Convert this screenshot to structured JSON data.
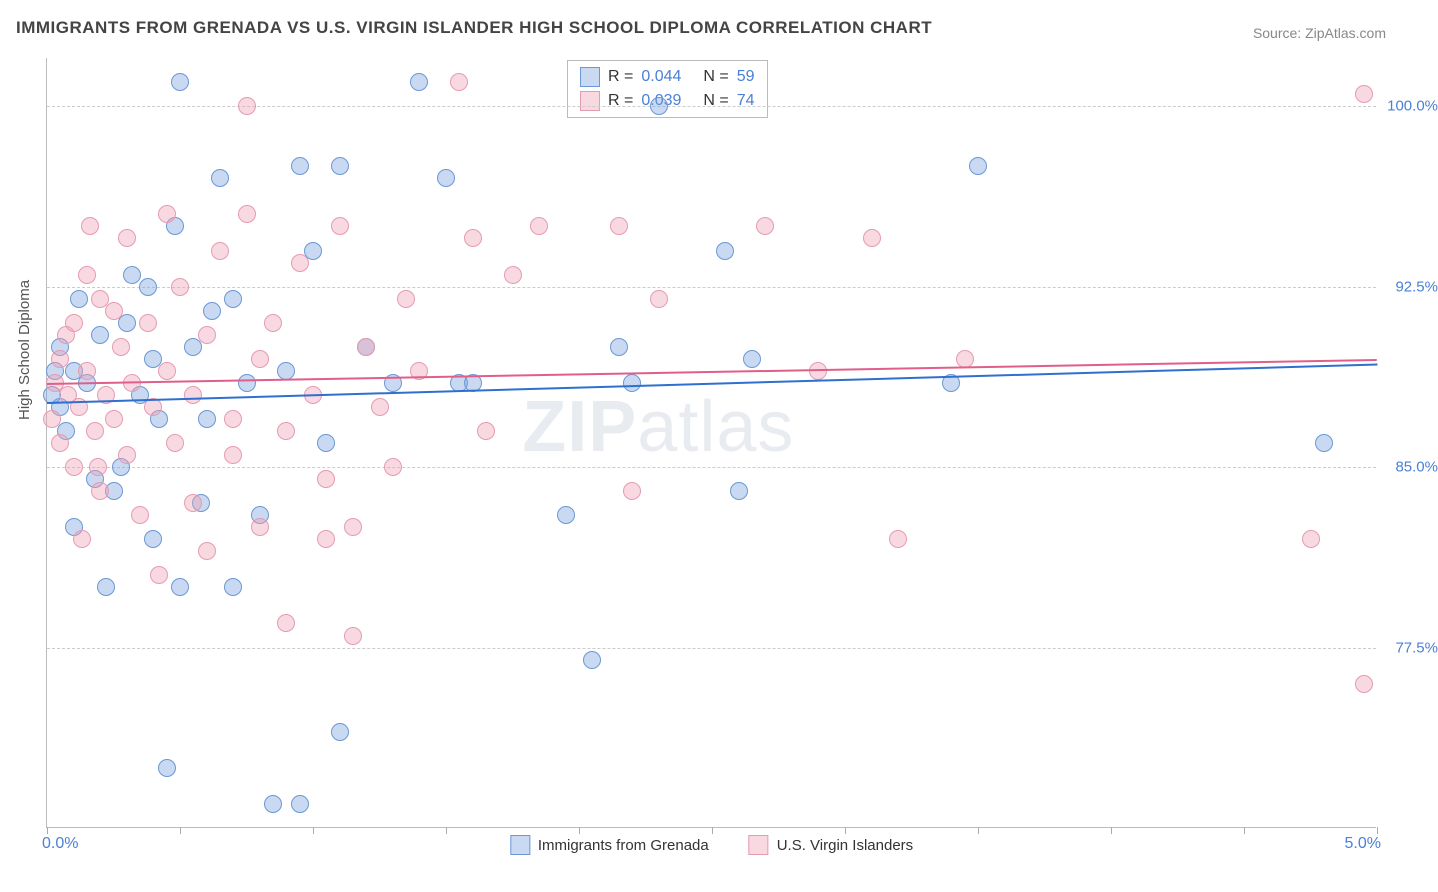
{
  "title": "IMMIGRANTS FROM GRENADA VS U.S. VIRGIN ISLANDER HIGH SCHOOL DIPLOMA CORRELATION CHART",
  "source": "Source: ZipAtlas.com",
  "ylabel": "High School Diploma",
  "watermark_bold": "ZIP",
  "watermark_rest": "atlas",
  "chart": {
    "type": "scatter",
    "xlim": [
      0.0,
      5.0
    ],
    "ylim": [
      70.0,
      102.0
    ],
    "x_tick_labels": {
      "left": "0.0%",
      "right": "5.0%"
    },
    "y_ticks": [
      {
        "value": 100.0,
        "label": "100.0%"
      },
      {
        "value": 92.5,
        "label": "92.5%"
      },
      {
        "value": 85.0,
        "label": "85.0%"
      },
      {
        "value": 77.5,
        "label": "77.5%"
      }
    ],
    "x_minor_ticks": [
      0,
      0.5,
      1.0,
      1.5,
      2.0,
      2.5,
      3.0,
      3.5,
      4.0,
      4.5,
      5.0
    ],
    "background_color": "#ffffff",
    "grid_color": "#cccccc",
    "series": [
      {
        "name": "Immigrants from Grenada",
        "color_fill": "rgba(120,160,220,0.4)",
        "color_stroke": "#6b98d6",
        "marker_size": 18,
        "R": "0.044",
        "N": "59",
        "trend": {
          "y_at_x0": 87.7,
          "y_at_x5": 89.3,
          "color": "#2f6fd0",
          "width": 2
        },
        "points": [
          [
            0.02,
            88.0
          ],
          [
            0.03,
            89.0
          ],
          [
            0.05,
            87.5
          ],
          [
            0.05,
            90.0
          ],
          [
            0.07,
            86.5
          ],
          [
            0.1,
            82.5
          ],
          [
            0.1,
            89.0
          ],
          [
            0.12,
            92.0
          ],
          [
            0.15,
            88.5
          ],
          [
            0.18,
            84.5
          ],
          [
            0.2,
            90.5
          ],
          [
            0.22,
            80.0
          ],
          [
            0.25,
            84.0
          ],
          [
            0.3,
            91.0
          ],
          [
            0.35,
            88.0
          ],
          [
            0.4,
            82.0
          ],
          [
            0.4,
            89.5
          ],
          [
            0.45,
            72.5
          ],
          [
            0.5,
            80.0
          ],
          [
            0.5,
            101.0
          ],
          [
            0.55,
            90.0
          ],
          [
            0.6,
            87.0
          ],
          [
            0.65,
            97.0
          ],
          [
            0.7,
            92.0
          ],
          [
            0.7,
            80.0
          ],
          [
            0.75,
            88.5
          ],
          [
            0.8,
            83.0
          ],
          [
            0.85,
            71.0
          ],
          [
            0.9,
            89.0
          ],
          [
            0.95,
            97.5
          ],
          [
            0.95,
            71.0
          ],
          [
            1.0,
            94.0
          ],
          [
            1.05,
            86.0
          ],
          [
            1.1,
            74.0
          ],
          [
            1.1,
            97.5
          ],
          [
            1.2,
            90.0
          ],
          [
            1.3,
            88.5
          ],
          [
            1.4,
            101.0
          ],
          [
            1.5,
            97.0
          ],
          [
            1.55,
            88.5
          ],
          [
            1.6,
            88.5
          ],
          [
            1.95,
            83.0
          ],
          [
            2.05,
            77.0
          ],
          [
            2.15,
            90.0
          ],
          [
            2.2,
            88.5
          ],
          [
            2.3,
            100.0
          ],
          [
            2.55,
            94.0
          ],
          [
            2.6,
            84.0
          ],
          [
            2.65,
            89.5
          ],
          [
            3.5,
            97.5
          ],
          [
            3.4,
            88.5
          ],
          [
            4.8,
            86.0
          ],
          [
            0.28,
            85.0
          ],
          [
            0.32,
            93.0
          ],
          [
            0.38,
            92.5
          ],
          [
            0.42,
            87.0
          ],
          [
            0.48,
            95.0
          ],
          [
            0.58,
            83.5
          ],
          [
            0.62,
            91.5
          ]
        ]
      },
      {
        "name": "U.S. Virgin Islanders",
        "color_fill": "rgba(240,160,180,0.4)",
        "color_stroke": "#e59bb0",
        "marker_size": 18,
        "R": "0.039",
        "N": "74",
        "trend": {
          "y_at_x0": 88.5,
          "y_at_x5": 89.5,
          "color": "#e05f8a",
          "width": 2
        },
        "points": [
          [
            0.02,
            87.0
          ],
          [
            0.03,
            88.5
          ],
          [
            0.05,
            86.0
          ],
          [
            0.05,
            89.5
          ],
          [
            0.07,
            90.5
          ],
          [
            0.08,
            88.0
          ],
          [
            0.1,
            91.0
          ],
          [
            0.1,
            85.0
          ],
          [
            0.12,
            87.5
          ],
          [
            0.15,
            93.0
          ],
          [
            0.15,
            89.0
          ],
          [
            0.18,
            86.5
          ],
          [
            0.2,
            92.0
          ],
          [
            0.2,
            84.0
          ],
          [
            0.22,
            88.0
          ],
          [
            0.25,
            91.5
          ],
          [
            0.25,
            87.0
          ],
          [
            0.28,
            90.0
          ],
          [
            0.3,
            85.5
          ],
          [
            0.3,
            94.5
          ],
          [
            0.32,
            88.5
          ],
          [
            0.35,
            83.0
          ],
          [
            0.38,
            91.0
          ],
          [
            0.4,
            87.5
          ],
          [
            0.42,
            80.5
          ],
          [
            0.45,
            95.5
          ],
          [
            0.45,
            89.0
          ],
          [
            0.48,
            86.0
          ],
          [
            0.5,
            92.5
          ],
          [
            0.55,
            88.0
          ],
          [
            0.55,
            83.5
          ],
          [
            0.6,
            90.5
          ],
          [
            0.6,
            81.5
          ],
          [
            0.65,
            94.0
          ],
          [
            0.7,
            87.0
          ],
          [
            0.7,
            85.5
          ],
          [
            0.75,
            95.5
          ],
          [
            0.75,
            100.0
          ],
          [
            0.8,
            89.5
          ],
          [
            0.8,
            82.5
          ],
          [
            0.85,
            91.0
          ],
          [
            0.9,
            86.5
          ],
          [
            0.9,
            78.5
          ],
          [
            0.95,
            93.5
          ],
          [
            1.0,
            88.0
          ],
          [
            1.05,
            84.5
          ],
          [
            1.05,
            82.0
          ],
          [
            1.1,
            95.0
          ],
          [
            1.15,
            78.0
          ],
          [
            1.15,
            82.5
          ],
          [
            1.2,
            90.0
          ],
          [
            1.25,
            87.5
          ],
          [
            1.3,
            85.0
          ],
          [
            1.35,
            92.0
          ],
          [
            1.4,
            89.0
          ],
          [
            1.55,
            101.0
          ],
          [
            1.6,
            94.5
          ],
          [
            1.65,
            86.5
          ],
          [
            1.75,
            93.0
          ],
          [
            1.85,
            95.0
          ],
          [
            2.15,
            95.0
          ],
          [
            2.2,
            84.0
          ],
          [
            2.3,
            92.0
          ],
          [
            2.7,
            95.0
          ],
          [
            2.9,
            89.0
          ],
          [
            3.1,
            94.5
          ],
          [
            3.2,
            82.0
          ],
          [
            3.45,
            89.5
          ],
          [
            4.75,
            82.0
          ],
          [
            4.95,
            76.0
          ],
          [
            4.95,
            100.5
          ],
          [
            0.13,
            82.0
          ],
          [
            0.16,
            95.0
          ],
          [
            0.19,
            85.0
          ]
        ]
      }
    ]
  },
  "legend": {
    "series1": "Immigrants from Grenada",
    "series2": "U.S. Virgin Islanders"
  },
  "stats_labels": {
    "R": "R =",
    "N": "N ="
  }
}
